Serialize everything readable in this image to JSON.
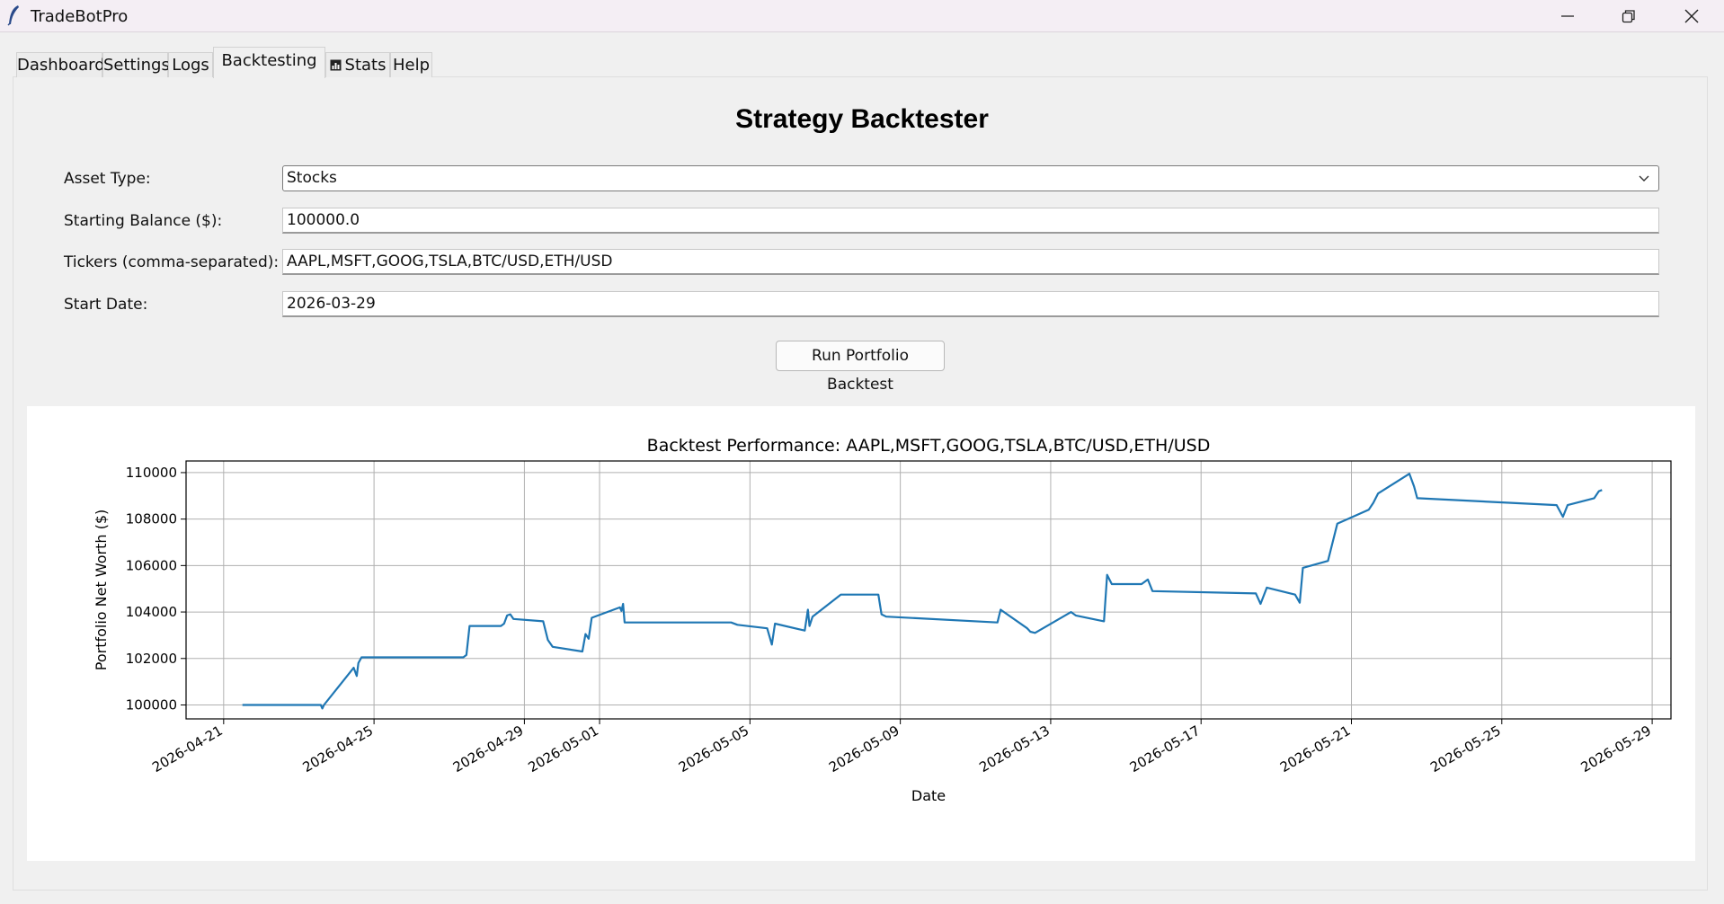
{
  "window": {
    "title": "TradeBotPro"
  },
  "tabs": [
    {
      "label": "Dashboard"
    },
    {
      "label": "Settings"
    },
    {
      "label": "Logs"
    },
    {
      "label": "Backtesting"
    },
    {
      "label": "Stats",
      "icon": "bar-chart-icon"
    },
    {
      "label": "Help"
    }
  ],
  "backtester": {
    "heading": "Strategy Backtester",
    "asset_type_label": "Asset Type:",
    "asset_type_value": "Stocks",
    "balance_label": "Starting Balance ($):",
    "balance_value": "100000.0",
    "tickers_label": "Tickers (comma-separated):",
    "tickers_value": "AAPL,MSFT,GOOG,TSLA,BTC/USD,ETH/USD",
    "start_label": "Start Date:",
    "start_value": "2026-03-29",
    "run_label": "Run Portfolio Backtest"
  },
  "chart_data": {
    "type": "line",
    "title": "Backtest Performance: AAPL,MSFT,GOOG,TSLA,BTC/USD,ETH/USD",
    "xlabel": "Date",
    "ylabel": "Portfolio Net Worth ($)",
    "xlim": [
      "2026-04-20T00:00",
      "2026-05-29T12:00"
    ],
    "ylim": [
      99400,
      110500
    ],
    "x_ticks": [
      "2026-04-21",
      "2026-04-25",
      "2026-04-29",
      "2026-05-01",
      "2026-05-05",
      "2026-05-09",
      "2026-05-13",
      "2026-05-17",
      "2026-05-21",
      "2026-05-25",
      "2026-05-29"
    ],
    "y_ticks": [
      100000,
      102000,
      104000,
      106000,
      108000,
      110000
    ],
    "grid": true,
    "color": "#1f77b4",
    "series": [
      {
        "x": [
          "2026-04-21T12:00",
          "2026-04-23T14:00",
          "2026-04-23T15:00",
          "2026-04-23T16:00",
          "2026-04-24T11:00",
          "2026-04-24T13:00",
          "2026-04-24T14:00",
          "2026-04-24T16:00",
          "2026-04-24T18:00",
          "2026-04-27T09:00",
          "2026-04-27T11:00",
          "2026-04-27T13:00",
          "2026-04-28T09:00",
          "2026-04-28T11:00",
          "2026-04-28T13:00",
          "2026-04-28T15:00",
          "2026-04-28T17:00",
          "2026-04-29T12:00",
          "2026-04-29T15:00",
          "2026-04-29T18:00",
          "2026-04-30T13:00",
          "2026-04-30T15:00",
          "2026-04-30T17:00",
          "2026-04-30T19:00",
          "2026-05-01T13:00",
          "2026-05-01T14:00",
          "2026-05-01T15:00",
          "2026-05-01T16:00",
          "2026-05-04T12:00",
          "2026-05-04T16:00",
          "2026-05-05T11:00",
          "2026-05-05T14:00",
          "2026-05-05T16:00",
          "2026-05-06T11:00",
          "2026-05-06T13:00",
          "2026-05-06T14:00",
          "2026-05-06T16:00",
          "2026-05-07T10:00",
          "2026-05-08T10:00",
          "2026-05-08T12:00",
          "2026-05-08T15:00",
          "2026-05-11T14:00",
          "2026-05-11T16:00",
          "2026-05-12T09:00",
          "2026-05-12T11:00",
          "2026-05-12T14:00",
          "2026-05-13T13:00",
          "2026-05-13T16:00",
          "2026-05-14T10:00",
          "2026-05-14T12:00",
          "2026-05-14T15:00",
          "2026-05-15T10:00",
          "2026-05-15T14:00",
          "2026-05-15T17:00",
          "2026-05-18T11:00",
          "2026-05-18T14:00",
          "2026-05-18T18:00",
          "2026-05-19T12:00",
          "2026-05-19T15:00",
          "2026-05-19T17:00",
          "2026-05-20T09:00",
          "2026-05-20T12:00",
          "2026-05-20T15:00",
          "2026-05-21T11:00",
          "2026-05-21T14:00",
          "2026-05-21T17:00",
          "2026-05-22T13:00",
          "2026-05-22T16:00",
          "2026-05-22T18:00",
          "2026-05-26T11:00",
          "2026-05-26T15:00",
          "2026-05-26T18:00",
          "2026-05-27T11:00",
          "2026-05-27T14:00",
          "2026-05-27T16:00"
        ],
        "y": [
          100000,
          100000,
          99850,
          100000,
          101600,
          101250,
          101800,
          102050,
          102050,
          102050,
          102150,
          103400,
          103400,
          103500,
          103850,
          103900,
          103700,
          103600,
          102800,
          102500,
          102300,
          103050,
          102850,
          103750,
          104200,
          104050,
          104350,
          103550,
          103550,
          103450,
          103300,
          102600,
          103500,
          103200,
          104100,
          103400,
          103800,
          104750,
          104750,
          103900,
          103800,
          103550,
          104100,
          103300,
          103150,
          103100,
          104000,
          103850,
          103600,
          105600,
          105200,
          105200,
          105400,
          104900,
          104800,
          104350,
          105050,
          104750,
          104400,
          105900,
          106200,
          107000,
          107800,
          108400,
          108700,
          109100,
          109950,
          109400,
          108900,
          108600,
          108100,
          108600,
          108900,
          109200,
          109250
        ]
      }
    ]
  }
}
